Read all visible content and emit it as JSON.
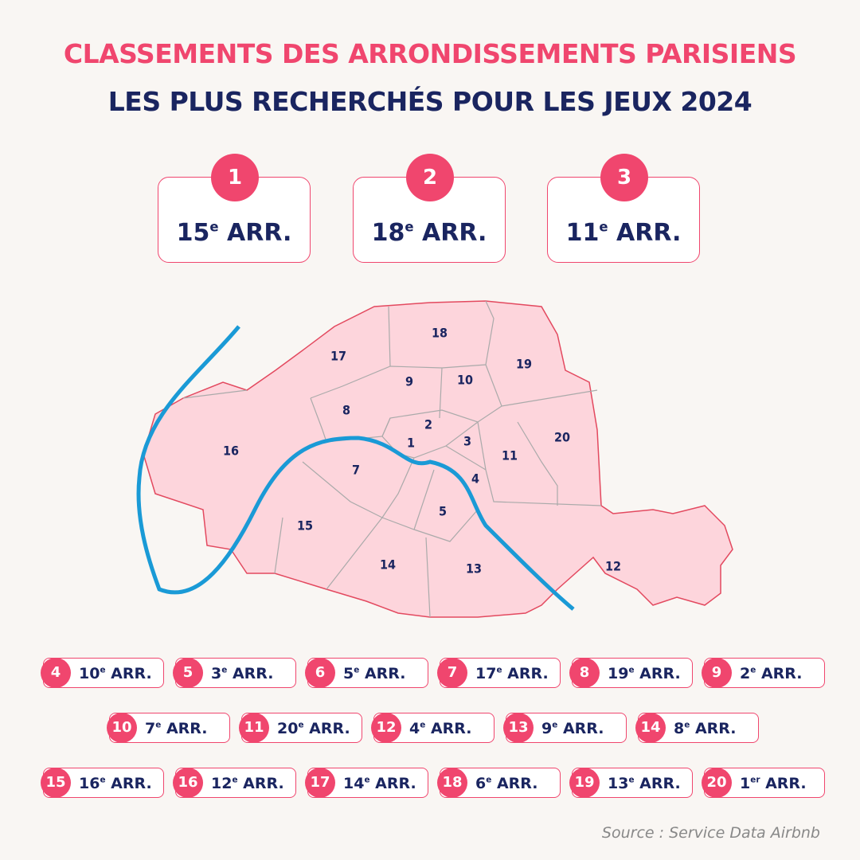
{
  "header": {
    "title": "CLASSEMENTS DES ARRONDISSEMENTS PARISIENS",
    "subtitle": "LES PLUS RECHERCHÉS POUR LES JEUX 2024"
  },
  "podium": [
    {
      "rank": "1",
      "number": "15",
      "sup": "e",
      "suffix": "ARR."
    },
    {
      "rank": "2",
      "number": "18",
      "sup": "e",
      "suffix": "ARR."
    },
    {
      "rank": "3",
      "number": "11",
      "sup": "e",
      "suffix": "ARR."
    }
  ],
  "map": {
    "labels": [
      "1",
      "2",
      "3",
      "4",
      "5",
      "7",
      "8",
      "9",
      "10",
      "11",
      "12",
      "13",
      "14",
      "15",
      "16",
      "17",
      "18",
      "19",
      "20"
    ]
  },
  "ranking": [
    {
      "rank": "4",
      "number": "10",
      "sup": "e",
      "suffix": "ARR."
    },
    {
      "rank": "5",
      "number": "3",
      "sup": "e",
      "suffix": "ARR."
    },
    {
      "rank": "6",
      "number": "5",
      "sup": "e",
      "suffix": "ARR."
    },
    {
      "rank": "7",
      "number": "17",
      "sup": "e",
      "suffix": "ARR."
    },
    {
      "rank": "8",
      "number": "19",
      "sup": "e",
      "suffix": "ARR."
    },
    {
      "rank": "9",
      "number": "2",
      "sup": "e",
      "suffix": "ARR."
    },
    {
      "rank": "10",
      "number": "7",
      "sup": "e",
      "suffix": "ARR."
    },
    {
      "rank": "11",
      "number": "20",
      "sup": "e",
      "suffix": "ARR."
    },
    {
      "rank": "12",
      "number": "4",
      "sup": "e",
      "suffix": "ARR."
    },
    {
      "rank": "13",
      "number": "9",
      "sup": "e",
      "suffix": "ARR."
    },
    {
      "rank": "14",
      "number": "8",
      "sup": "e",
      "suffix": "ARR."
    },
    {
      "rank": "15",
      "number": "16",
      "sup": "e",
      "suffix": "ARR."
    },
    {
      "rank": "16",
      "number": "12",
      "sup": "e",
      "suffix": "ARR."
    },
    {
      "rank": "17",
      "number": "14",
      "sup": "e",
      "suffix": "ARR."
    },
    {
      "rank": "18",
      "number": "6",
      "sup": "e",
      "suffix": "ARR."
    },
    {
      "rank": "19",
      "number": "13",
      "sup": "e",
      "suffix": "ARR."
    },
    {
      "rank": "20",
      "number": "1",
      "sup": "er",
      "suffix": "ARR."
    }
  ],
  "source": "Source : Service Data Airbnb"
}
